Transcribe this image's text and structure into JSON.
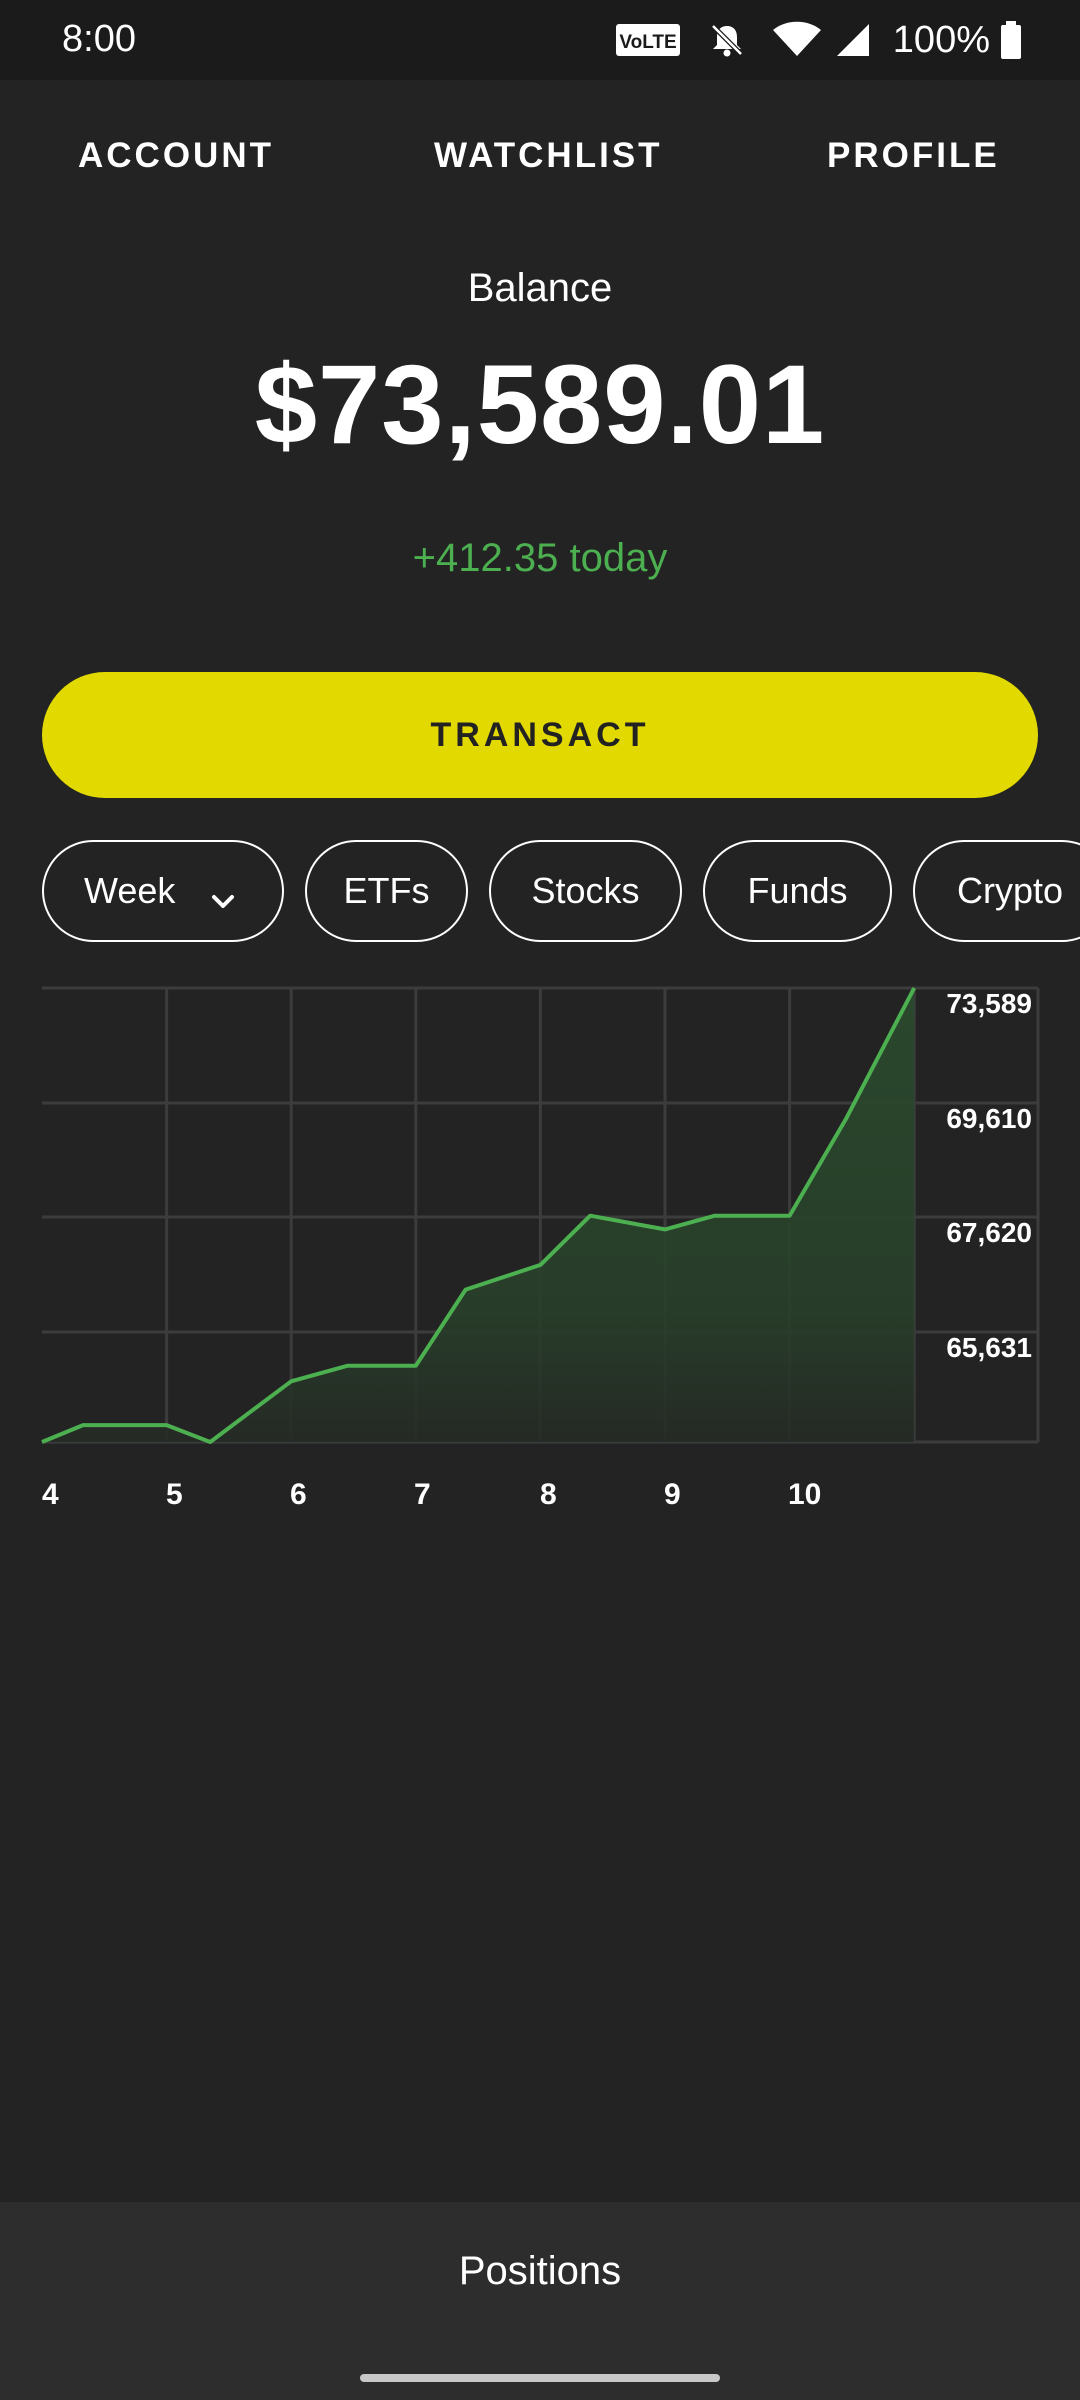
{
  "status_bar": {
    "time": "8:00",
    "volte": "VoLTE",
    "battery": "100%",
    "icons": [
      "volte-icon",
      "bell-off-icon",
      "wifi-icon",
      "signal-icon",
      "battery-icon"
    ]
  },
  "top_nav": {
    "tabs": [
      "ACCOUNT",
      "WATCHLIST",
      "PROFILE"
    ]
  },
  "balance": {
    "label": "Balance",
    "value": "$73,589.01",
    "change": "+412.35 today"
  },
  "transact": {
    "label": "TRANSACT"
  },
  "filters": {
    "period": "Week",
    "chips": [
      "ETFs",
      "Stocks",
      "Funds",
      "Crypto"
    ]
  },
  "colors": {
    "background": "#232323",
    "accent": "#e2d900",
    "positive": "#4caf50",
    "grid": "#3c3c3c"
  },
  "chart_data": {
    "type": "area",
    "x_tick_labels": [
      "4",
      "5",
      "6",
      "7",
      "8",
      "9",
      "10"
    ],
    "y_tick_labels": [
      "73,589",
      "69,610",
      "67,620",
      "65,631"
    ],
    "x": [
      4.0,
      4.33,
      5.0,
      5.35,
      6.0,
      6.45,
      7.0,
      7.4,
      8.0,
      8.4,
      9.0,
      9.4,
      10.0,
      10.45,
      11.0
    ],
    "values": [
      63640,
      64010,
      64010,
      63640,
      64970,
      65310,
      65310,
      66980,
      67520,
      68600,
      68300,
      68600,
      68600,
      70710,
      73589
    ],
    "ylim": [
      63640,
      73589
    ],
    "xlim": [
      4,
      12
    ],
    "grid": true,
    "line_color": "#4caf50"
  },
  "bottom": {
    "positions_label": "Positions"
  }
}
